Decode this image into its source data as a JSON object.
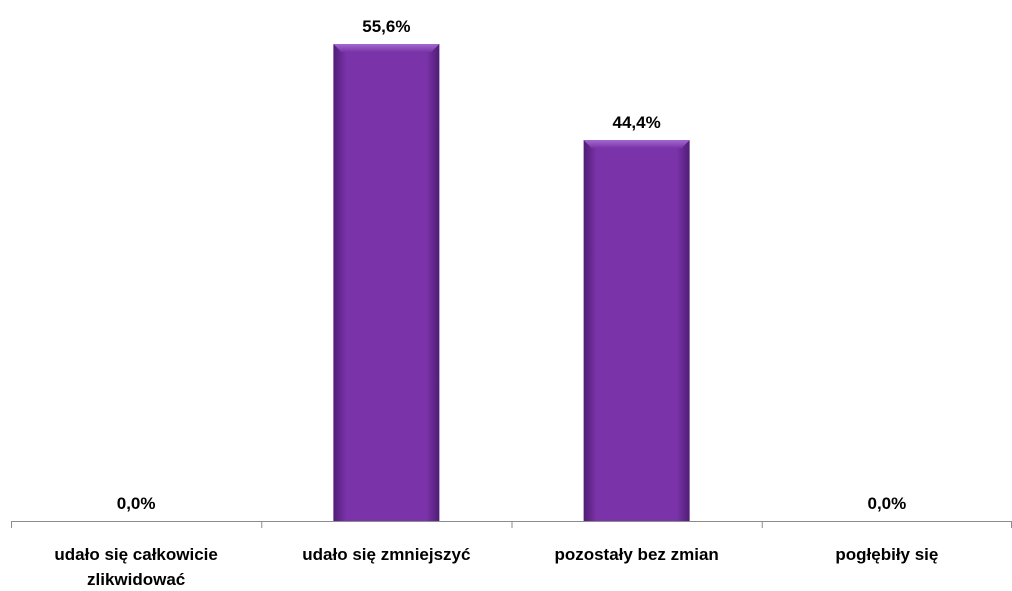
{
  "chart_data": {
    "type": "bar",
    "categories": [
      [
        "udało się całkowicie",
        "zlikwidować"
      ],
      [
        "udało się zmniejszyć"
      ],
      [
        "pozostały bez zmian"
      ],
      [
        "pogłębiły się"
      ]
    ],
    "values": [
      0.0,
      55.6,
      44.4,
      0.0
    ],
    "value_labels": [
      "0,0%",
      "55,6%",
      "44,4%",
      "0,0%"
    ],
    "ylim": [
      0,
      55.6
    ],
    "grid": false,
    "legend": "none",
    "bar_color": "#7a33a8",
    "bar_edge_color": "#4f1c75",
    "bar_highlight_color": "#a46ad0"
  }
}
